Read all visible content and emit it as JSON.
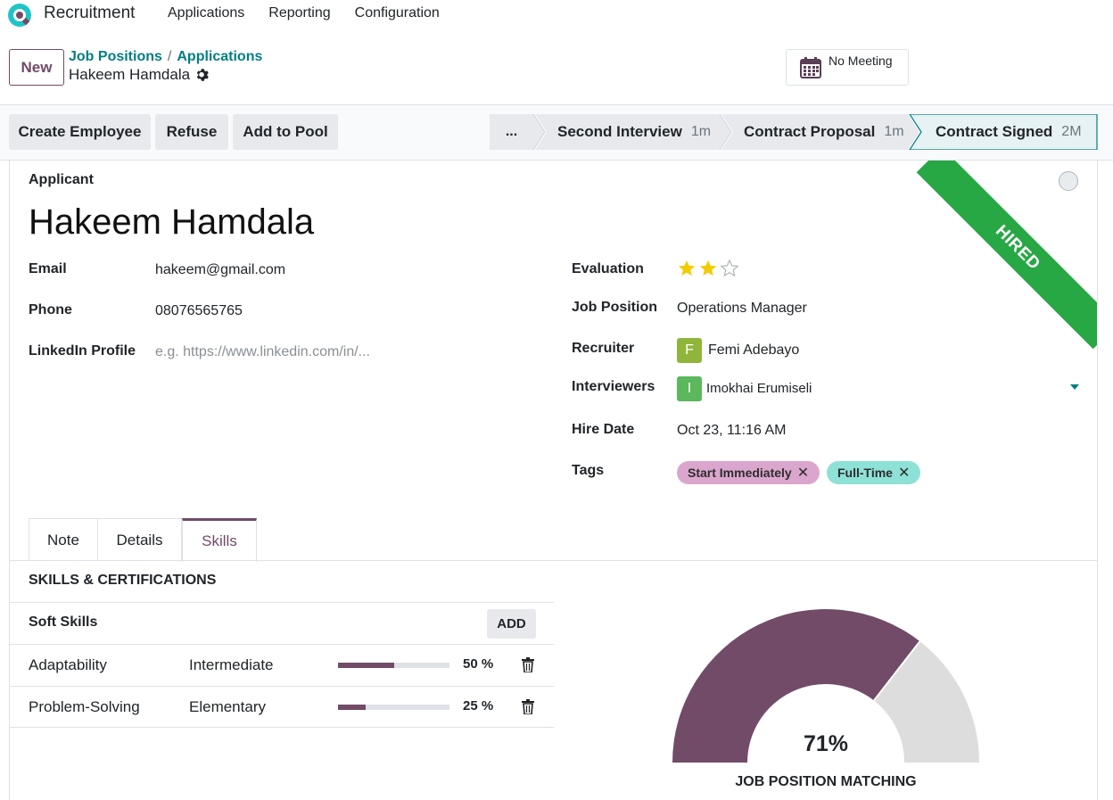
{
  "navbar": {
    "app_title": "Recruitment",
    "menu": [
      "Applications",
      "Reporting",
      "Configuration"
    ]
  },
  "control_panel": {
    "new_label": "New",
    "breadcrumb": [
      "Job Positions",
      "Applications"
    ],
    "breadcrumb_sep": "/",
    "record_name": "Hakeem Hamdala",
    "meeting_label": "No Meeting"
  },
  "statusbar": {
    "actions": [
      "Create Employee",
      "Refuse",
      "Add to Pool"
    ],
    "stages": [
      {
        "label": "...",
        "duration": ""
      },
      {
        "label": "Second Interview",
        "duration": "1m"
      },
      {
        "label": "Contract Proposal",
        "duration": "1m"
      },
      {
        "label": "Contract Signed",
        "duration": "2M"
      }
    ]
  },
  "form": {
    "ribbon": "HIRED",
    "applicant_label": "Applicant",
    "name": "Hakeem Hamdala",
    "left_fields": [
      {
        "label": "Email",
        "value": "hakeem@gmail.com",
        "placeholder": ""
      },
      {
        "label": "Phone",
        "value": "08076565765",
        "placeholder": ""
      },
      {
        "label": "LinkedIn Profile",
        "value": "",
        "placeholder": "e.g. https://www.linkedin.com/in/..."
      }
    ],
    "evaluation": {
      "label": "Evaluation",
      "rating": 2,
      "max": 3
    },
    "job_position": {
      "label": "Job Position",
      "value": "Operations Manager"
    },
    "recruiter": {
      "label": "Recruiter",
      "initial": "F",
      "name": "Femi Adebayo",
      "color": "#8fb63b"
    },
    "interviewers": {
      "label": "Interviewers",
      "initial": "I",
      "name": "Imokhai Erumiseli",
      "color": "#5cb85c"
    },
    "hire_date": {
      "label": "Hire Date",
      "value": "Oct 23, 11:16 AM"
    },
    "tags": {
      "label": "Tags",
      "items": [
        {
          "name": "Start Immediately",
          "color": "#dba6cd"
        },
        {
          "name": "Full-Time",
          "color": "#8ee1d6"
        }
      ]
    }
  },
  "tabs": [
    "Note",
    "Details",
    "Skills"
  ],
  "skills": {
    "title": "SKILLS & CERTIFICATIONS",
    "group": "Soft Skills",
    "add_label": "ADD",
    "rows": [
      {
        "name": "Adaptability",
        "level": "Intermediate",
        "progress": 50,
        "pct_label": "50 %"
      },
      {
        "name": "Problem-Solving",
        "level": "Elementary",
        "progress": 25,
        "pct_label": "25 %"
      }
    ]
  },
  "matching": {
    "value": 71,
    "value_label": "71%",
    "label": "JOB POSITION MATCHING",
    "fill_color": "#714b67",
    "rest_color": "#dddddd"
  }
}
